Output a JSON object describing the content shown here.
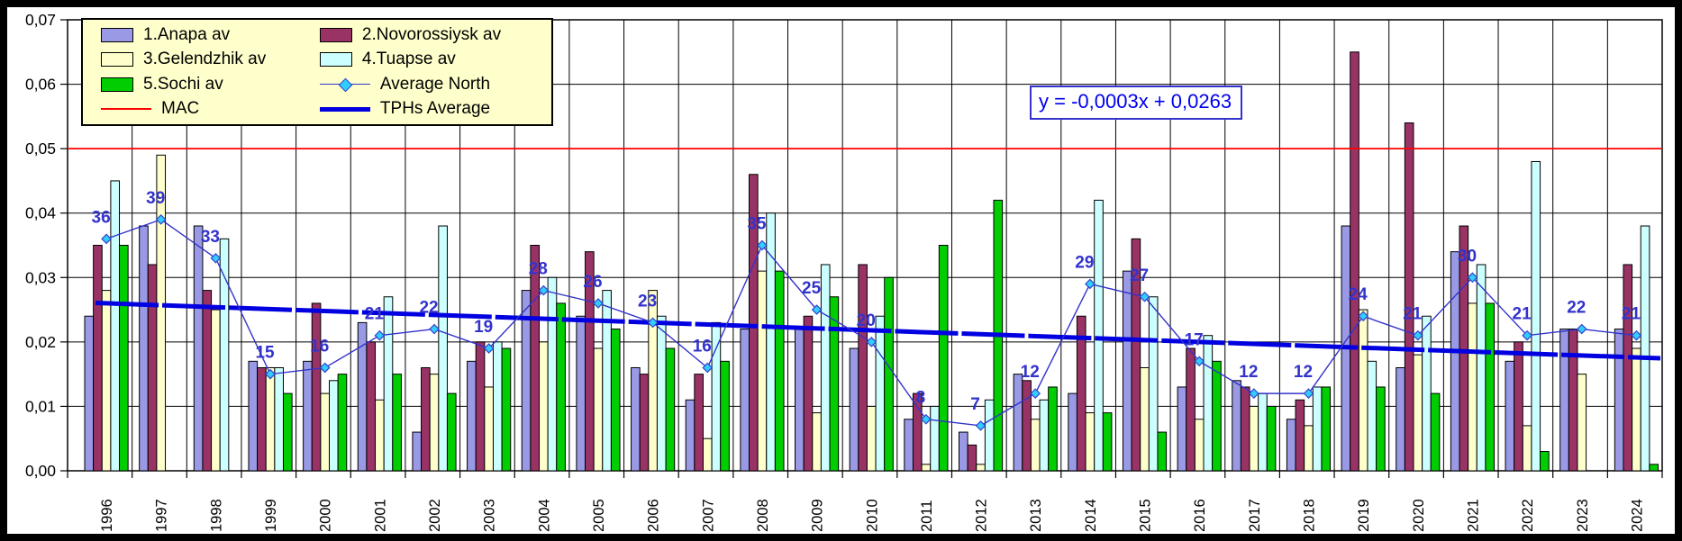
{
  "equation_box": {
    "text": "y = -0,0003x + 0,0263"
  },
  "legend": {
    "items": [
      {
        "key": "anapa",
        "label": "1.Anapa av",
        "swatch": "box",
        "color": "#9999E6"
      },
      {
        "key": "novorossiysk",
        "label": "2.Novorossiysk av",
        "swatch": "box",
        "color": "#993366"
      },
      {
        "key": "gelendzhik",
        "label": "3.Gelendzhik av",
        "swatch": "box",
        "color": "#FFFFCC"
      },
      {
        "key": "tuapse",
        "label": "4.Tuapse av",
        "swatch": "box",
        "color": "#CCFFFF"
      },
      {
        "key": "sochi",
        "label": "5.Sochi av",
        "swatch": "box",
        "color": "#00CE00"
      },
      {
        "key": "avg-north",
        "label": "Average North",
        "swatch": "line-marker",
        "color": "#3333CC"
      },
      {
        "key": "mac",
        "label": "MAC",
        "swatch": "line",
        "color": "#FF0000"
      },
      {
        "key": "tphs-average",
        "label": "TPHs Average",
        "swatch": "thick-line",
        "color": "#0000E0"
      }
    ]
  },
  "chart_data": {
    "type": "bar",
    "subtype": "grouped bars + line overlays",
    "title": "",
    "xlabel": "",
    "ylabel": "",
    "grid": true,
    "legend_position": "top-left inside plot",
    "ylim": [
      0,
      0.07
    ],
    "y_axis": {
      "min": 0,
      "max": 0.07,
      "step": 0.01,
      "tick_labels": [
        "0,00",
        "0,01",
        "0,02",
        "0,03",
        "0,04",
        "0,05",
        "0,06",
        "0,07"
      ]
    },
    "categories": [
      "1996",
      "1997",
      "1998",
      "1999",
      "2000",
      "2001",
      "2002",
      "2003",
      "2004",
      "2005",
      "2006",
      "2007",
      "2008",
      "2009",
      "2010",
      "2011",
      "2012",
      "2013",
      "2014",
      "2015",
      "2016",
      "2017",
      "2018",
      "2019",
      "2020",
      "2021",
      "2022",
      "2023",
      "2024"
    ],
    "series": [
      {
        "key": "anapa",
        "name": "1.Anapa av",
        "color": "#9999E6",
        "values": [
          0.024,
          0.038,
          0.038,
          0.017,
          0.017,
          0.023,
          0.006,
          0.017,
          0.028,
          0.024,
          0.016,
          0.011,
          0.022,
          0.022,
          0.019,
          0.008,
          0.006,
          0.015,
          0.012,
          0.031,
          0.013,
          0.014,
          0.008,
          0.038,
          0.016,
          0.034,
          0.017,
          0.022,
          0.022
        ]
      },
      {
        "key": "novorossiysk",
        "name": "2.Novorossiysk av",
        "color": "#993366",
        "values": [
          0.035,
          0.032,
          0.028,
          0.016,
          0.026,
          0.02,
          0.016,
          0.02,
          0.035,
          0.034,
          0.015,
          0.015,
          0.046,
          0.024,
          0.032,
          0.012,
          0.004,
          0.014,
          0.024,
          0.036,
          0.019,
          0.013,
          0.011,
          0.065,
          0.054,
          0.038,
          0.02,
          0.022,
          0.032
        ]
      },
      {
        "key": "gelendzhik",
        "name": "3.Gelendzhik av",
        "color": "#FFFFCC",
        "values": [
          0.028,
          0.049,
          0.025,
          0.016,
          0.012,
          0.011,
          0.015,
          0.013,
          0.02,
          0.019,
          0.028,
          0.005,
          0.031,
          0.009,
          0.01,
          0.001,
          0.001,
          0.008,
          0.009,
          0.016,
          0.008,
          0.01,
          0.007,
          0.025,
          0.018,
          0.026,
          0.007,
          0.015,
          0.019
        ]
      },
      {
        "key": "tuapse",
        "name": "4.Tuapse av",
        "color": "#CCFFFF",
        "values": [
          0.045,
          null,
          0.036,
          0.016,
          0.014,
          0.027,
          0.038,
          0.02,
          0.03,
          0.028,
          0.024,
          0.023,
          0.04,
          0.032,
          0.024,
          0.01,
          0.011,
          0.011,
          0.042,
          0.027,
          0.021,
          0.012,
          0.013,
          0.017,
          0.024,
          0.032,
          0.048,
          null,
          0.038
        ]
      },
      {
        "key": "sochi",
        "name": "5.Sochi av",
        "color": "#00CE00",
        "values": [
          0.035,
          null,
          null,
          0.012,
          0.015,
          0.015,
          0.012,
          0.019,
          0.026,
          0.022,
          0.019,
          0.017,
          0.031,
          0.027,
          0.03,
          0.035,
          0.042,
          0.013,
          0.009,
          0.006,
          0.017,
          0.01,
          0.013,
          0.013,
          0.012,
          0.026,
          0.003,
          null,
          0.001
        ]
      }
    ],
    "line_series": {
      "key": "avg-north",
      "name": "Average North",
      "color": "#3333CC",
      "marker_fill": "#33CCFF",
      "marker_stroke": "#3344CC",
      "values": [
        0.036,
        0.039,
        0.033,
        0.015,
        0.016,
        0.021,
        0.022,
        0.019,
        0.028,
        0.026,
        0.023,
        0.016,
        0.035,
        0.025,
        0.02,
        0.008,
        0.007,
        0.012,
        0.029,
        0.027,
        0.017,
        0.012,
        0.012,
        0.024,
        0.021,
        0.03,
        0.021,
        0.022,
        0.021
      ],
      "point_labels": [
        "36",
        "39",
        "33",
        "15",
        "16",
        "21",
        "22",
        "19",
        "28",
        "26",
        "23",
        "16",
        "35",
        "25",
        "20",
        "8",
        "7",
        "12",
        "29",
        "27",
        "17",
        "12",
        "12",
        "24",
        "21",
        "30",
        "21",
        "22",
        "21"
      ],
      "label_color": "#3333CC"
    },
    "mac_line": {
      "key": "mac",
      "name": "MAC",
      "value": 0.05,
      "color": "#FF0000"
    },
    "trend_line": {
      "key": "tphs-average",
      "name": "TPHs Average",
      "color": "#0000E0",
      "equation": "y = -0,0003x + 0,0263",
      "slope": -0.0003,
      "intercept": 0.0263
    }
  }
}
